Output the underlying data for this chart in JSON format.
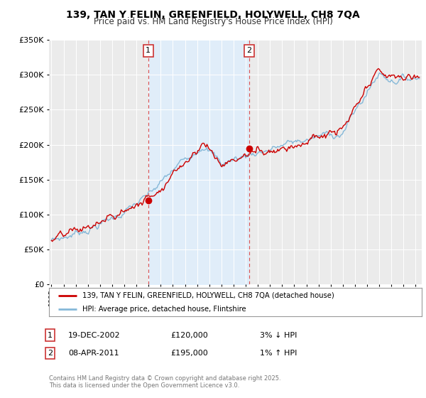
{
  "title": "139, TAN Y FELIN, GREENFIELD, HOLYWELL, CH8 7QA",
  "subtitle": "Price paid vs. HM Land Registry's House Price Index (HPI)",
  "legend_entry1": "139, TAN Y FELIN, GREENFIELD, HOLYWELL, CH8 7QA (detached house)",
  "legend_entry2": "HPI: Average price, detached house, Flintshire",
  "sale1_date": "19-DEC-2002",
  "sale1_price": "£120,000",
  "sale1_hpi": "3% ↓ HPI",
  "sale1_year": 2002.97,
  "sale1_value": 120000,
  "sale2_date": "08-APR-2011",
  "sale2_price": "£195,000",
  "sale2_hpi": "1% ↑ HPI",
  "sale2_year": 2011.27,
  "sale2_value": 195000,
  "color_price_paid": "#cc0000",
  "color_hpi": "#85b8d8",
  "color_shade": "#ddeeff",
  "color_vline": "#dd5555",
  "background_chart": "#ebebeb",
  "background_fig": "#ffffff",
  "ylim": [
    0,
    350000
  ],
  "xlim_start": 1994.8,
  "xlim_end": 2025.5,
  "footer": "Contains HM Land Registry data © Crown copyright and database right 2025.\nThis data is licensed under the Open Government Licence v3.0."
}
